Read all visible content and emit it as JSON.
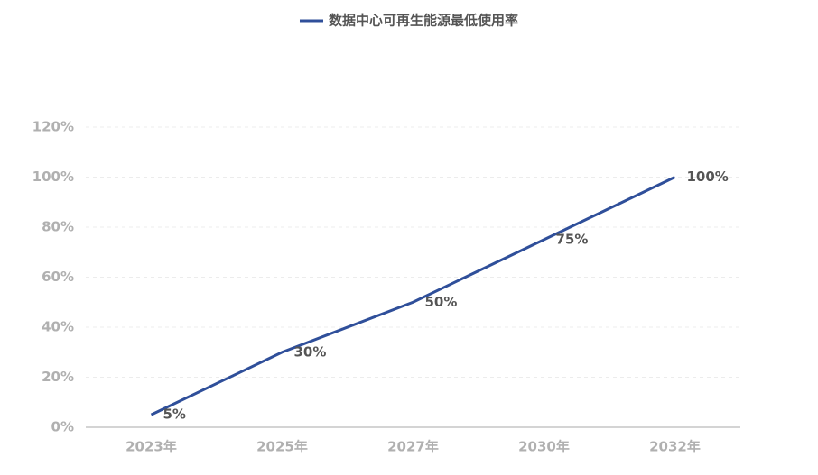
{
  "chart_data": {
    "type": "line",
    "categories": [
      "2023年",
      "2025年",
      "2027年",
      "2030年",
      "2032年"
    ],
    "series": [
      {
        "name": "数据中心可再生能源最低使用率",
        "color": "#2f4f9a",
        "values": [
          5,
          30,
          50,
          75,
          100
        ],
        "value_labels": [
          "5%",
          "30%",
          "50%",
          "75%",
          "100%"
        ]
      }
    ],
    "ylim": [
      0,
      120
    ],
    "yticks": [
      {
        "value": 0,
        "label": "0%"
      },
      {
        "value": 20,
        "label": "20%"
      },
      {
        "value": 40,
        "label": "40%"
      },
      {
        "value": 60,
        "label": "60%"
      },
      {
        "value": 80,
        "label": "80%"
      },
      {
        "value": 100,
        "label": "100%"
      },
      {
        "value": 120,
        "label": "120%"
      }
    ],
    "grid": true,
    "legend": "top"
  }
}
